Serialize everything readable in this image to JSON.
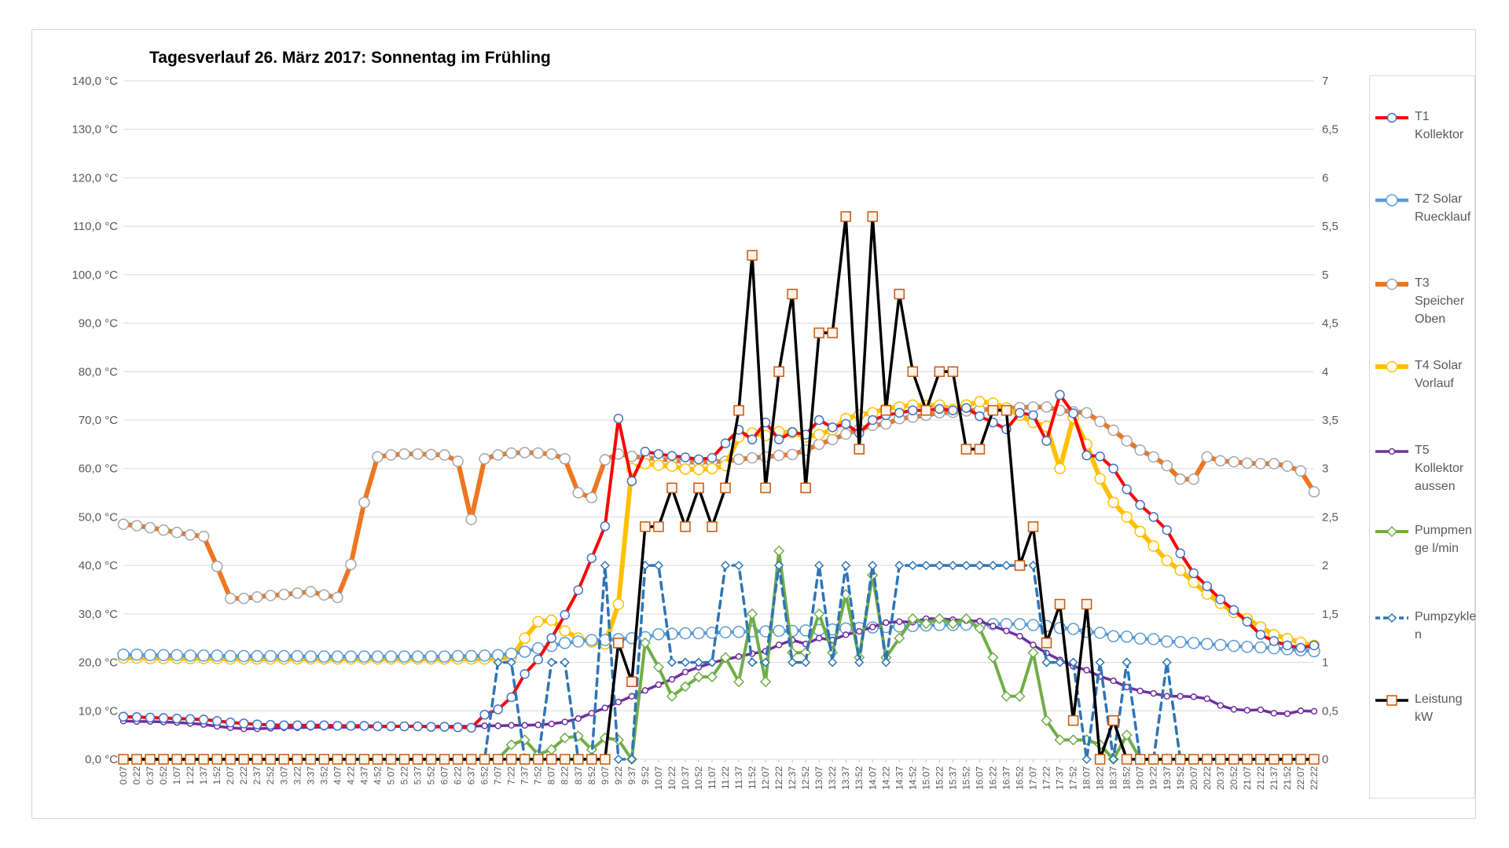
{
  "chart_data": {
    "type": "line",
    "title": "Tagesverlauf 26. März 2017: Sonnentag im Frühling",
    "grid": true,
    "legend_position": "right",
    "left_axis": {
      "min": 0,
      "max": 140,
      "step": 10,
      "unit": "°C",
      "labels": [
        "140,0 °C",
        "130,0 °C",
        "120,0 °C",
        "110,0 °C",
        "100,0 °C",
        "90,0 °C",
        "80,0 °C",
        "70,0 °C",
        "60,0 °C",
        "50,0 °C",
        "40,0 °C",
        "30,0 °C",
        "20,0 °C",
        "10,0 °C",
        "0,0 °C"
      ]
    },
    "right_axis": {
      "min": 0,
      "max": 7,
      "step": 0.5,
      "labels": [
        "7",
        "6,5",
        "6",
        "5,5",
        "5",
        "4,5",
        "4",
        "3,5",
        "3",
        "2,5",
        "2",
        "1,5",
        "1",
        "0,5",
        "0"
      ]
    },
    "categories": [
      "0:07",
      "0:22",
      "0:37",
      "0:52",
      "1:07",
      "1:22",
      "1:37",
      "1:52",
      "2:07",
      "2:22",
      "2:37",
      "2:52",
      "3:07",
      "3:22",
      "3:37",
      "3:52",
      "4:07",
      "4:22",
      "4:37",
      "4:52",
      "5:07",
      "5:22",
      "5:37",
      "5:52",
      "6:07",
      "6:22",
      "6:37",
      "6:52",
      "7:07",
      "7:22",
      "7:37",
      "7:52",
      "8:07",
      "8:22",
      "8:37",
      "8:52",
      "9:07",
      "9:22",
      "9:37",
      "9:52",
      "10:07",
      "10:22",
      "10:37",
      "10:52",
      "11:07",
      "11:22",
      "11:37",
      "11:52",
      "12:07",
      "12:22",
      "12:37",
      "12:52",
      "13:07",
      "13:22",
      "13:37",
      "13:52",
      "14:07",
      "14:22",
      "14:37",
      "14:52",
      "15:07",
      "15:22",
      "15:37",
      "15:52",
      "16:07",
      "16:22",
      "16:37",
      "16:52",
      "17:07",
      "17:22",
      "17:37",
      "17:52",
      "18:07",
      "18:22",
      "18:37",
      "18:52",
      "19:07",
      "19:22",
      "19:37",
      "19:52",
      "20:07",
      "20:22",
      "20:37",
      "20:52",
      "21:07",
      "21:22",
      "21:37",
      "21:52",
      "22:07",
      "22:22"
    ],
    "series": [
      {
        "name": "T1 Kollektor",
        "label_lines": [
          "T1",
          "Kollektor"
        ],
        "axis": "left",
        "color": "#ff0000",
        "marker": "circle",
        "marker_color": "#4472c4",
        "marker_size": 5.5,
        "width": 4,
        "dashed": false,
        "values": [
          8.8,
          8.7,
          8.6,
          8.5,
          8.4,
          8.3,
          8.2,
          7.9,
          7.6,
          7.4,
          7.2,
          7.1,
          7.0,
          7.0,
          7.0,
          7.0,
          6.9,
          6.9,
          6.9,
          6.8,
          6.8,
          6.8,
          6.8,
          6.7,
          6.7,
          6.6,
          6.5,
          9.2,
          10.3,
          12.8,
          17.6,
          20.6,
          25.0,
          29.8,
          34.9,
          41.5,
          48.1,
          70.3,
          57.4,
          63.5,
          63.0,
          62.6,
          62.3,
          61.9,
          62.2,
          65.2,
          68.0,
          66.0,
          69.5,
          66.0,
          67.5,
          67.0,
          70.0,
          68.5,
          69.2,
          67.3,
          70.0,
          71.0,
          71.5,
          72.0,
          72.0,
          72.3,
          72.0,
          72.5,
          70.8,
          69.5,
          68.1,
          71.5,
          71.0,
          65.7,
          75.2,
          71.4,
          62.7,
          62.5,
          60.0,
          55.7,
          52.5,
          50.0,
          47.3,
          42.5,
          38.4,
          35.7,
          33.0,
          30.8,
          28.4,
          25.7,
          24.4,
          23.5,
          23.0,
          23.5
        ]
      },
      {
        "name": "T2 Solar Ruecklauf",
        "label_lines": [
          "T2 Solar",
          "Ruecklauf"
        ],
        "axis": "left",
        "color": "#5b9bd5",
        "marker": "circle",
        "marker_color": "#5b9bd5",
        "marker_size": 7,
        "width": 4.5,
        "dashed": false,
        "values": [
          21.6,
          21.6,
          21.5,
          21.5,
          21.5,
          21.4,
          21.4,
          21.4,
          21.3,
          21.3,
          21.3,
          21.3,
          21.3,
          21.3,
          21.2,
          21.2,
          21.2,
          21.2,
          21.2,
          21.2,
          21.2,
          21.2,
          21.2,
          21.2,
          21.2,
          21.3,
          21.3,
          21.4,
          21.5,
          21.8,
          22.2,
          22.9,
          23.4,
          24.0,
          24.3,
          24.6,
          24.6,
          24.8,
          25.0,
          25.2,
          25.8,
          25.9,
          26.0,
          26.0,
          26.1,
          26.2,
          26.3,
          26.4,
          26.4,
          26.5,
          26.5,
          26.6,
          26.7,
          26.8,
          27.0,
          27.1,
          27.2,
          27.3,
          27.4,
          27.5,
          27.6,
          27.7,
          27.7,
          27.8,
          27.8,
          27.9,
          27.9,
          27.9,
          27.7,
          27.5,
          27.1,
          26.9,
          26.3,
          26.1,
          25.4,
          25.3,
          24.9,
          24.8,
          24.3,
          24.2,
          24.0,
          23.8,
          23.6,
          23.4,
          23.2,
          23.1,
          22.9,
          22.7,
          22.5,
          22.3
        ]
      },
      {
        "name": "T3 Speicher Oben",
        "label_lines": [
          "T3",
          "Speicher",
          "Oben"
        ],
        "axis": "left",
        "color": "#ee7621",
        "marker": "circle",
        "marker_color": "#a6a6a6",
        "marker_size": 6.5,
        "width": 6,
        "dashed": false,
        "values": [
          48.5,
          48.2,
          47.8,
          47.3,
          46.8,
          46.3,
          46.0,
          39.8,
          33.2,
          33.2,
          33.5,
          33.8,
          34.0,
          34.3,
          34.6,
          33.9,
          33.4,
          40.2,
          53.0,
          62.4,
          62.8,
          63.0,
          63.0,
          62.9,
          62.8,
          61.5,
          49.5,
          62.0,
          62.8,
          63.2,
          63.3,
          63.2,
          63.0,
          62.0,
          55.0,
          54.0,
          61.8,
          63.0,
          62.5,
          62.2,
          62.0,
          61.7,
          61.4,
          61.3,
          61.4,
          61.5,
          61.9,
          62.2,
          62.4,
          62.7,
          62.9,
          63.8,
          65.0,
          66.0,
          67.1,
          68.1,
          68.9,
          69.2,
          70.3,
          70.6,
          71.0,
          71.5,
          71.6,
          71.9,
          72.1,
          72.3,
          72.4,
          72.6,
          72.7,
          72.7,
          72.0,
          71.7,
          71.5,
          69.7,
          67.9,
          65.7,
          63.8,
          62.4,
          60.6,
          57.8,
          57.8,
          62.4,
          61.6,
          61.4,
          61.1,
          61.0,
          61.0,
          60.5,
          59.5,
          55.2
        ]
      },
      {
        "name": "T4 Solar Vorlauf",
        "label_lines": [
          "T4 Solar",
          "Vorlauf"
        ],
        "axis": "left",
        "color": "#ffc000",
        "marker": "circle",
        "marker_color": "#ffc000",
        "marker_size": 6.5,
        "width": 6,
        "dashed": false,
        "values": [
          20.9,
          20.9,
          20.8,
          20.8,
          20.8,
          20.8,
          20.8,
          20.8,
          20.7,
          20.7,
          20.7,
          20.7,
          20.7,
          20.7,
          20.7,
          20.7,
          20.7,
          20.7,
          20.7,
          20.7,
          20.7,
          20.7,
          20.7,
          20.7,
          20.7,
          20.7,
          20.7,
          20.7,
          20.8,
          21.0,
          25.0,
          28.4,
          28.7,
          26.5,
          25.0,
          24.2,
          23.8,
          32.0,
          60.0,
          61.0,
          60.7,
          60.5,
          59.9,
          59.8,
          60.0,
          60.6,
          66.5,
          67.3,
          66.8,
          67.6,
          67.4,
          66.5,
          67.0,
          68.0,
          70.3,
          71.1,
          71.5,
          72.4,
          72.7,
          73.1,
          73.0,
          73.1,
          72.2,
          73.1,
          73.8,
          73.5,
          72.5,
          71.0,
          69.5,
          68.7,
          60.0,
          70.5,
          65.0,
          57.9,
          53.0,
          50.0,
          47.0,
          44.0,
          41.0,
          39.0,
          36.5,
          34.1,
          32.2,
          30.3,
          29.0,
          27.3,
          25.7,
          24.9,
          24.1,
          23.5
        ]
      },
      {
        "name": "T5 Kollektor aussen",
        "label_lines": [
          "T5",
          "Kollektor",
          "aussen"
        ],
        "axis": "left",
        "color": "#7030a0",
        "marker": "circle",
        "marker_color": "#7030a0",
        "marker_size": 3.5,
        "width": 3.5,
        "dashed": false,
        "values": [
          7.9,
          7.8,
          7.8,
          7.7,
          7.6,
          7.4,
          7.2,
          6.8,
          6.5,
          6.3,
          6.3,
          6.4,
          6.5,
          6.5,
          6.6,
          6.6,
          6.6,
          6.6,
          6.7,
          6.7,
          6.7,
          6.8,
          6.8,
          6.8,
          6.8,
          6.8,
          6.8,
          6.9,
          6.9,
          7.0,
          7.0,
          7.1,
          7.3,
          7.7,
          8.4,
          9.5,
          10.6,
          11.8,
          13.0,
          14.2,
          15.4,
          16.5,
          18.0,
          19.0,
          19.9,
          20.6,
          21.2,
          21.8,
          22.3,
          23.6,
          24.6,
          23.8,
          25.0,
          24.6,
          25.7,
          26.4,
          27.3,
          28.2,
          28.4,
          28.3,
          29.0,
          29.0,
          28.8,
          28.6,
          28.5,
          27.5,
          26.5,
          25.4,
          23.6,
          21.9,
          20.5,
          19.2,
          18.4,
          17.1,
          16.2,
          14.9,
          14.1,
          13.6,
          13.0,
          13.0,
          12.9,
          12.5,
          11.1,
          10.3,
          10.1,
          10.2,
          9.5,
          9.4,
          10.0,
          9.9
        ]
      },
      {
        "name": "Pumpmenge l/min",
        "label_lines": [
          "Pumpmen",
          "ge l/min"
        ],
        "axis": "right",
        "color": "#70ad47",
        "marker": "diamond",
        "marker_color": "#70ad47",
        "marker_size": 6,
        "width": 4,
        "dashed": false,
        "values": [
          0,
          0,
          0,
          0,
          0,
          0,
          0,
          0,
          0,
          0,
          0,
          0,
          0,
          0,
          0,
          0,
          0,
          0,
          0,
          0,
          0,
          0,
          0,
          0,
          0,
          0,
          0,
          0,
          0,
          0.15,
          0.2,
          0.05,
          0.1,
          0.22,
          0.24,
          0.1,
          0.22,
          0.2,
          0.0,
          1.2,
          0.95,
          0.65,
          0.75,
          0.85,
          0.85,
          1.05,
          0.8,
          1.5,
          0.8,
          2.15,
          1.1,
          1.1,
          1.5,
          1.1,
          1.7,
          1.05,
          1.9,
          1.05,
          1.25,
          1.45,
          1.4,
          1.45,
          1.4,
          1.45,
          1.35,
          1.05,
          0.65,
          0.65,
          1.1,
          0.4,
          0.2,
          0.2,
          0.2,
          0.15,
          0.0,
          0.25,
          0,
          0,
          0,
          0,
          0,
          0,
          0,
          0,
          0,
          0,
          0,
          0,
          0,
          0
        ]
      },
      {
        "name": "Pumpzyklen",
        "label_lines": [
          "Pumpzykle",
          "n"
        ],
        "axis": "right",
        "color": "#2e75b6",
        "marker": "diamond",
        "marker_color": "#2e75b6",
        "marker_size": 5,
        "width": 3.5,
        "dashed": true,
        "values": [
          0,
          0,
          0,
          0,
          0,
          0,
          0,
          0,
          0,
          0,
          0,
          0,
          0,
          0,
          0,
          0,
          0,
          0,
          0,
          0,
          0,
          0,
          0,
          0,
          0,
          0,
          0,
          0,
          1,
          1,
          0,
          0,
          1,
          1,
          0,
          0,
          2,
          0,
          0,
          2,
          2,
          1,
          1,
          1,
          1,
          2,
          2,
          1,
          1,
          2,
          1,
          1,
          2,
          1,
          2,
          1,
          2,
          1,
          2,
          2,
          2,
          2,
          2,
          2,
          2,
          2,
          2,
          2,
          2,
          1,
          1,
          1,
          0,
          1,
          0,
          1,
          0,
          0,
          1,
          0,
          0,
          0,
          0,
          0,
          0,
          0,
          0,
          0,
          0,
          0
        ]
      },
      {
        "name": "Leistung kW",
        "label_lines": [
          "Leistung",
          "kW"
        ],
        "axis": "right",
        "color": "#000000",
        "marker": "square",
        "marker_color": "#c55a11",
        "marker_size": 6,
        "width": 3.5,
        "dashed": false,
        "values": [
          0,
          0,
          0,
          0,
          0,
          0,
          0,
          0,
          0,
          0,
          0,
          0,
          0,
          0,
          0,
          0,
          0,
          0,
          0,
          0,
          0,
          0,
          0,
          0,
          0,
          0,
          0,
          0,
          0,
          0,
          0,
          0,
          0,
          0,
          0,
          0,
          0,
          1.2,
          0.8,
          2.4,
          2.4,
          2.8,
          2.4,
          2.8,
          2.4,
          2.8,
          3.6,
          5.2,
          2.8,
          4.0,
          4.8,
          2.8,
          4.4,
          4.4,
          5.6,
          3.2,
          5.6,
          3.6,
          4.8,
          4.0,
          3.6,
          4.0,
          4.0,
          3.2,
          3.2,
          3.6,
          3.6,
          2.0,
          2.4,
          1.2,
          1.6,
          0.4,
          1.6,
          0.0,
          0.4,
          0.0,
          0,
          0,
          0,
          0,
          0,
          0,
          0,
          0,
          0,
          0,
          0,
          0,
          0,
          0
        ]
      }
    ],
    "colors": {
      "grid": "#d9d9d9",
      "axis_text": "#595959",
      "tick": "#bfbfbf",
      "card_border": "#d6d6d6",
      "background": "#ffffff",
      "title_text": "#000000"
    }
  }
}
